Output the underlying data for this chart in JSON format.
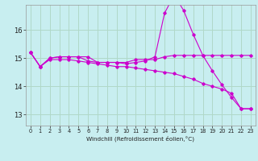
{
  "xlabel": "Windchill (Refroidissement éolien,°C)",
  "background_color": "#c8eef0",
  "grid_color": "#b0d8c8",
  "line_color": "#cc00cc",
  "x_ticks": [
    0,
    1,
    2,
    3,
    4,
    5,
    6,
    7,
    8,
    9,
    10,
    11,
    12,
    13,
    14,
    15,
    16,
    17,
    18,
    19,
    20,
    21,
    22,
    23
  ],
  "y_ticks": [
    13,
    14,
    15,
    16
  ],
  "ylim": [
    12.6,
    16.9
  ],
  "xlim": [
    -0.5,
    23.5
  ],
  "series1_y": [
    15.2,
    14.7,
    15.0,
    15.05,
    15.05,
    15.05,
    15.05,
    14.85,
    14.85,
    14.85,
    14.85,
    14.95,
    14.95,
    14.95,
    15.05,
    15.1,
    15.1,
    15.1,
    15.1,
    15.1,
    15.1,
    15.1,
    15.1,
    15.1
  ],
  "series2_y": [
    15.2,
    14.7,
    15.0,
    15.05,
    15.05,
    15.05,
    14.9,
    14.85,
    14.85,
    14.85,
    14.8,
    14.85,
    14.9,
    15.05,
    16.6,
    17.25,
    16.7,
    15.85,
    15.1,
    14.55,
    14.05,
    13.6,
    13.2,
    13.2
  ],
  "series3_y": [
    15.2,
    14.7,
    14.95,
    14.95,
    14.95,
    14.9,
    14.85,
    14.8,
    14.75,
    14.7,
    14.7,
    14.65,
    14.6,
    14.55,
    14.5,
    14.45,
    14.35,
    14.25,
    14.1,
    14.0,
    13.9,
    13.75,
    13.2,
    13.2
  ]
}
